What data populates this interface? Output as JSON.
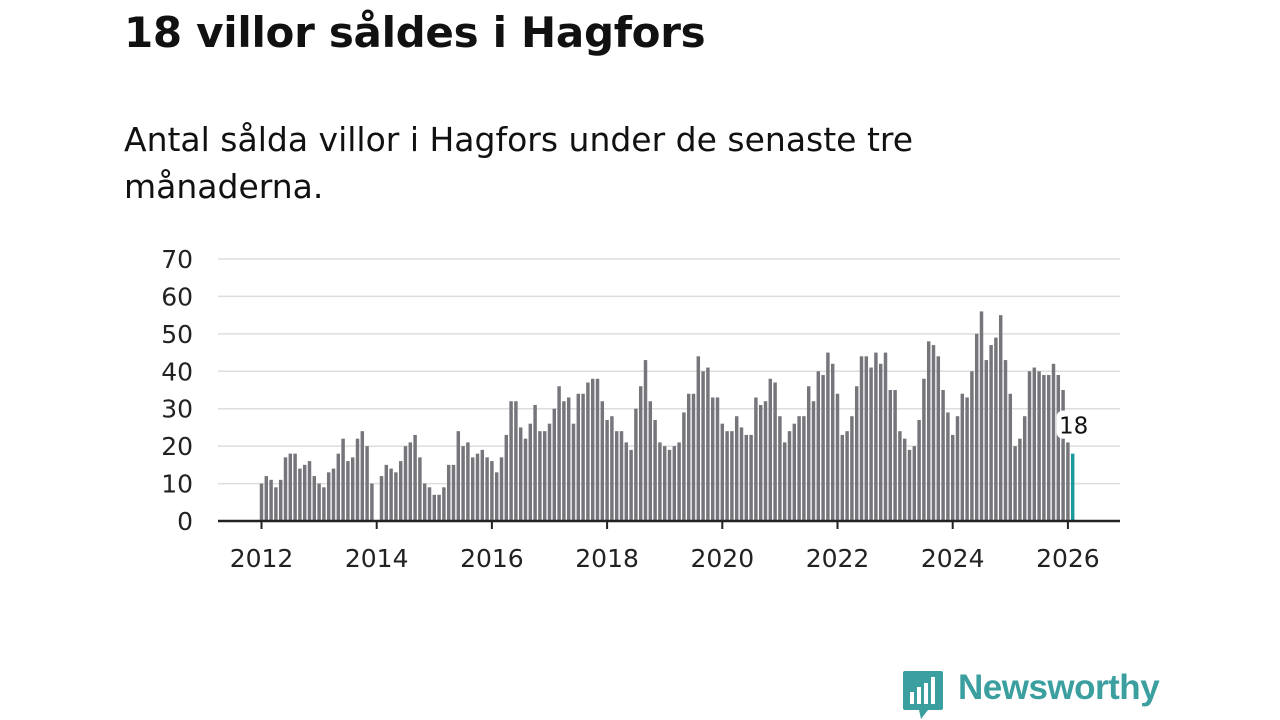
{
  "title": "18 villor såldes i Hagfors",
  "subtitle": "Antal sålda villor i Hagfors under de senaste tre månaderna.",
  "brand": {
    "name": "Newsworthy",
    "color": "#3b9f9f"
  },
  "colors": {
    "bar": "#76757b",
    "highlight": "#1a9a9b",
    "grid": "#dddddd",
    "axis": "#222222"
  },
  "chart_data": {
    "type": "bar",
    "title": "Antal sålda villor i Hagfors",
    "xlabel": "",
    "ylabel": "",
    "ylim": [
      0,
      70
    ],
    "yticks": [
      0,
      10,
      20,
      30,
      40,
      50,
      60,
      70
    ],
    "xticks": [
      "2012",
      "2014",
      "2016",
      "2018",
      "2020",
      "2022",
      "2024",
      "2026"
    ],
    "grid": true,
    "start": "2012-01",
    "interval": "month",
    "values": [
      10,
      12,
      11,
      9,
      11,
      17,
      18,
      18,
      14,
      15,
      16,
      12,
      10,
      9,
      13,
      14,
      18,
      22,
      16,
      17,
      22,
      24,
      20,
      10,
      0,
      12,
      15,
      14,
      13,
      16,
      20,
      21,
      23,
      17,
      10,
      9,
      7,
      7,
      9,
      15,
      15,
      24,
      20,
      21,
      17,
      18,
      19,
      17,
      16,
      13,
      17,
      23,
      32,
      32,
      25,
      22,
      26,
      31,
      24,
      24,
      26,
      30,
      36,
      32,
      33,
      26,
      34,
      34,
      37,
      38,
      38,
      32,
      27,
      28,
      24,
      24,
      21,
      19,
      30,
      36,
      43,
      32,
      27,
      21,
      20,
      19,
      20,
      21,
      29,
      34,
      34,
      44,
      40,
      41,
      33,
      33,
      26,
      24,
      24,
      28,
      25,
      23,
      23,
      33,
      31,
      32,
      38,
      37,
      28,
      21,
      24,
      26,
      28,
      28,
      36,
      32,
      40,
      39,
      45,
      42,
      34,
      23,
      24,
      28,
      36,
      44,
      44,
      41,
      45,
      42,
      45,
      35,
      35,
      24,
      22,
      19,
      20,
      27,
      38,
      48,
      47,
      44,
      35,
      29,
      23,
      28,
      34,
      33,
      40,
      50,
      56,
      43,
      47,
      49,
      55,
      43,
      34,
      20,
      22,
      28,
      40,
      41,
      40,
      39,
      39,
      42,
      39,
      35,
      21,
      18
    ],
    "highlight_label": "18"
  }
}
